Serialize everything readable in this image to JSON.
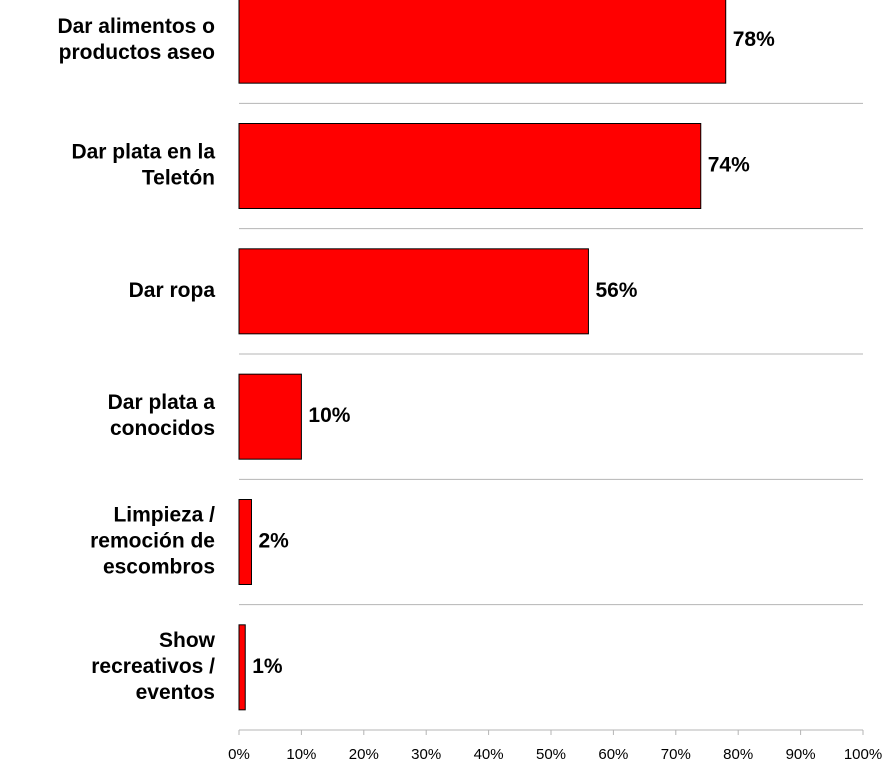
{
  "chart_data": {
    "type": "bar",
    "orientation": "horizontal",
    "categories": [
      [
        "Dar alimentos o",
        "productos aseo"
      ],
      [
        "Dar plata en la",
        "Teletón"
      ],
      [
        "Dar ropa"
      ],
      [
        "Dar plata a",
        "conocidos"
      ],
      [
        "Limpieza /",
        "remoción de",
        "escombros"
      ],
      [
        "Show",
        "recreativos /",
        "eventos"
      ]
    ],
    "values": [
      78,
      74,
      56,
      10,
      2,
      1
    ],
    "value_labels": [
      "78%",
      "74%",
      "56%",
      "10%",
      "2%",
      "1%"
    ],
    "color": "#ff0000",
    "xlim": [
      0,
      100
    ],
    "xticks": [
      {
        "value": 0,
        "label": "0%"
      },
      {
        "value": 10,
        "label": "10%"
      },
      {
        "value": 20,
        "label": "20%"
      },
      {
        "value": 30,
        "label": "30%"
      },
      {
        "value": 40,
        "label": "40%"
      },
      {
        "value": 50,
        "label": "50%"
      },
      {
        "value": 60,
        "label": "60%"
      },
      {
        "value": 70,
        "label": "70%"
      },
      {
        "value": 80,
        "label": "80%"
      },
      {
        "value": 90,
        "label": "90%"
      },
      {
        "value": 100,
        "label": "100%"
      }
    ]
  }
}
